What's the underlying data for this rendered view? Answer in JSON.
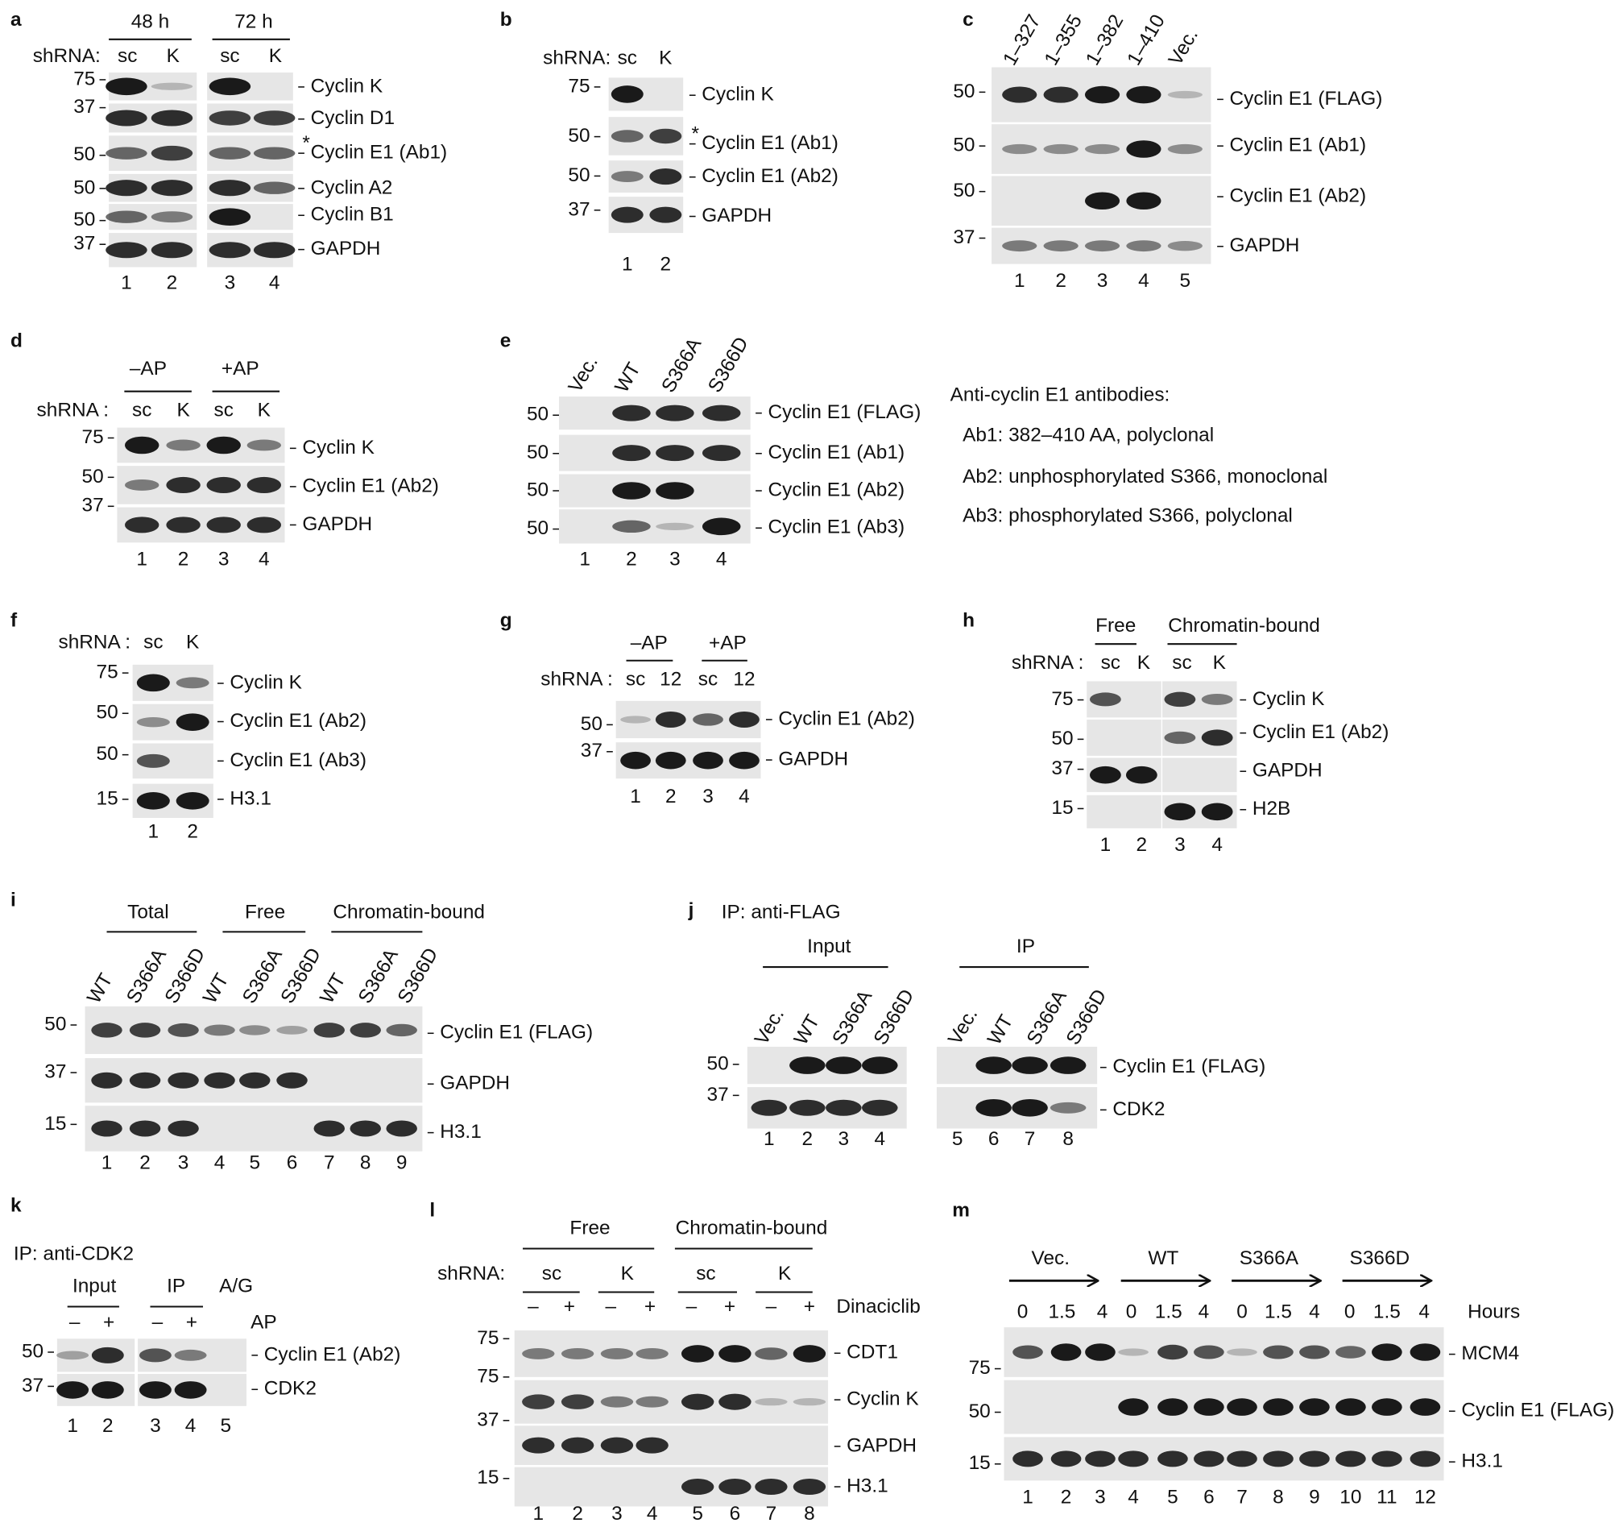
{
  "panels": [
    {
      "letter": "a",
      "groups": [
        "48 h",
        "72 h"
      ],
      "row_label": "shRNA:",
      "lane_headers": [
        "sc",
        "K",
        "sc",
        "K"
      ],
      "markers": [
        75,
        37,
        50,
        50,
        50,
        37
      ],
      "blots": [
        "Cyclin K",
        "Cyclin D1",
        "Cyclin E1 (Ab1)",
        "Cyclin A2",
        "Cyclin B1",
        "GAPDH"
      ],
      "asterisk": "*",
      "lanes": [
        1,
        2,
        3,
        4
      ]
    },
    {
      "letter": "b",
      "row_label": "shRNA:",
      "lane_headers": [
        "sc",
        "K"
      ],
      "markers": [
        75,
        50,
        50,
        37
      ],
      "blots": [
        "Cyclin K",
        "Cyclin E1 (Ab1)",
        "Cyclin E1 (Ab2)",
        "GAPDH"
      ],
      "asterisk": "*",
      "lanes": [
        1,
        2
      ]
    },
    {
      "letter": "c",
      "lane_headers": [
        "1–327",
        "1–355",
        "1–382",
        "1–410",
        "Vec."
      ],
      "markers": [
        50,
        50,
        50,
        37
      ],
      "blots": [
        "Cyclin E1 (FLAG)",
        "Cyclin E1 (Ab1)",
        "Cyclin E1 (Ab2)",
        "GAPDH"
      ],
      "lanes": [
        1,
        2,
        3,
        4,
        5
      ]
    },
    {
      "letter": "d",
      "groups": [
        "–AP",
        "+AP"
      ],
      "row_label": "shRNA :",
      "lane_headers": [
        "sc",
        "K",
        "sc",
        "K"
      ],
      "markers": [
        75,
        50,
        37
      ],
      "blots": [
        "Cyclin K",
        "Cyclin E1 (Ab2)",
        "GAPDH"
      ],
      "lanes": [
        1,
        2,
        3,
        4
      ]
    },
    {
      "letter": "e",
      "lane_headers": [
        "Vec.",
        "WT",
        "S366A",
        "S366D"
      ],
      "markers": [
        50,
        50,
        50,
        50
      ],
      "blots": [
        "Cyclin E1 (FLAG)",
        "Cyclin E1 (Ab1)",
        "Cyclin E1 (Ab2)",
        "Cyclin E1 (Ab3)"
      ],
      "lanes": [
        1,
        2,
        3,
        4
      ],
      "notes": {
        "title": "Anti-cyclin E1 antibodies:",
        "items": [
          "Ab1: 382–410 AA, polyclonal",
          "Ab2: unphosphorylated S366, monoclonal",
          "Ab3: phosphorylated S366, polyclonal"
        ]
      }
    },
    {
      "letter": "f",
      "row_label": "shRNA :",
      "lane_headers": [
        "sc",
        "K"
      ],
      "markers": [
        75,
        50,
        50,
        15
      ],
      "blots": [
        "Cyclin K",
        "Cyclin E1 (Ab2)",
        "Cyclin E1 (Ab3)",
        "H3.1"
      ],
      "lanes": [
        1,
        2
      ]
    },
    {
      "letter": "g",
      "groups": [
        "–AP",
        "+AP"
      ],
      "row_label": "shRNA :",
      "lane_headers": [
        "sc",
        "12",
        "sc",
        "12"
      ],
      "markers": [
        50,
        37
      ],
      "blots": [
        "Cyclin E1 (Ab2)",
        "GAPDH"
      ],
      "lanes": [
        1,
        2,
        3,
        4
      ]
    },
    {
      "letter": "h",
      "groups": [
        "Free",
        "Chromatin-bound"
      ],
      "row_label": "shRNA :",
      "lane_headers": [
        "sc",
        "K",
        "sc",
        "K"
      ],
      "markers": [
        75,
        50,
        37,
        15
      ],
      "blots": [
        "Cyclin K",
        "Cyclin E1 (Ab2)",
        "GAPDH",
        "H2B"
      ],
      "lanes": [
        1,
        2,
        3,
        4
      ]
    },
    {
      "letter": "i",
      "groups": [
        "Total",
        "Free",
        "Chromatin-bound"
      ],
      "lane_headers": [
        "WT",
        "S366A",
        "S366D",
        "WT",
        "S366A",
        "S366D",
        "WT",
        "S366A",
        "S366D"
      ],
      "markers": [
        50,
        37,
        15
      ],
      "blots": [
        "Cyclin E1 (FLAG)",
        "GAPDH",
        "H3.1"
      ],
      "lanes": [
        1,
        2,
        3,
        4,
        5,
        6,
        7,
        8,
        9
      ]
    },
    {
      "letter": "j",
      "caption": "IP: anti-FLAG",
      "groups": [
        "Input",
        "IP"
      ],
      "lane_headers": [
        "Vec.",
        "WT",
        "S366A",
        "S366D",
        "Vec.",
        "WT",
        "S366A",
        "S366D"
      ],
      "markers": [
        50,
        37
      ],
      "blots": [
        "Cyclin E1 (FLAG)",
        "CDK2"
      ],
      "lanes": [
        1,
        2,
        3,
        4,
        5,
        6,
        7,
        8
      ]
    },
    {
      "letter": "k",
      "caption": "IP: anti-CDK2",
      "groups": [
        "Input",
        "IP",
        "A/G"
      ],
      "lane_headers": [
        "–",
        "+",
        "–",
        "+"
      ],
      "end_label": "AP",
      "markers": [
        50,
        37
      ],
      "blots": [
        "Cyclin E1 (Ab2)",
        "CDK2"
      ],
      "lanes": [
        1,
        2,
        3,
        4,
        5
      ]
    },
    {
      "letter": "l",
      "groups": [
        "Free",
        "Chromatin-bound"
      ],
      "row_label": "shRNA:",
      "subgroups": [
        "sc",
        "K",
        "sc",
        "K"
      ],
      "lane_headers": [
        "–",
        "+",
        "–",
        "+",
        "–",
        "+",
        "–",
        "+"
      ],
      "end_label": "Dinaciclib",
      "markers": [
        75,
        75,
        37,
        15
      ],
      "blots": [
        "CDT1",
        "Cyclin K",
        "GAPDH",
        "H3.1"
      ],
      "lanes": [
        1,
        2,
        3,
        4,
        5,
        6,
        7,
        8
      ]
    },
    {
      "letter": "m",
      "groups": [
        "Vec.",
        "WT",
        "S366A",
        "S366D"
      ],
      "lane_headers": [
        "0",
        "1.5",
        "4",
        "0",
        "1.5",
        "4",
        "0",
        "1.5",
        "4",
        "0",
        "1.5",
        "4"
      ],
      "end_label": "Hours",
      "markers": [
        75,
        50,
        15
      ],
      "blots": [
        "MCM4",
        "Cyclin E1 (FLAG)",
        "H3.1"
      ],
      "lanes": [
        1,
        2,
        3,
        4,
        5,
        6,
        7,
        8,
        9,
        10,
        11,
        12
      ]
    }
  ]
}
